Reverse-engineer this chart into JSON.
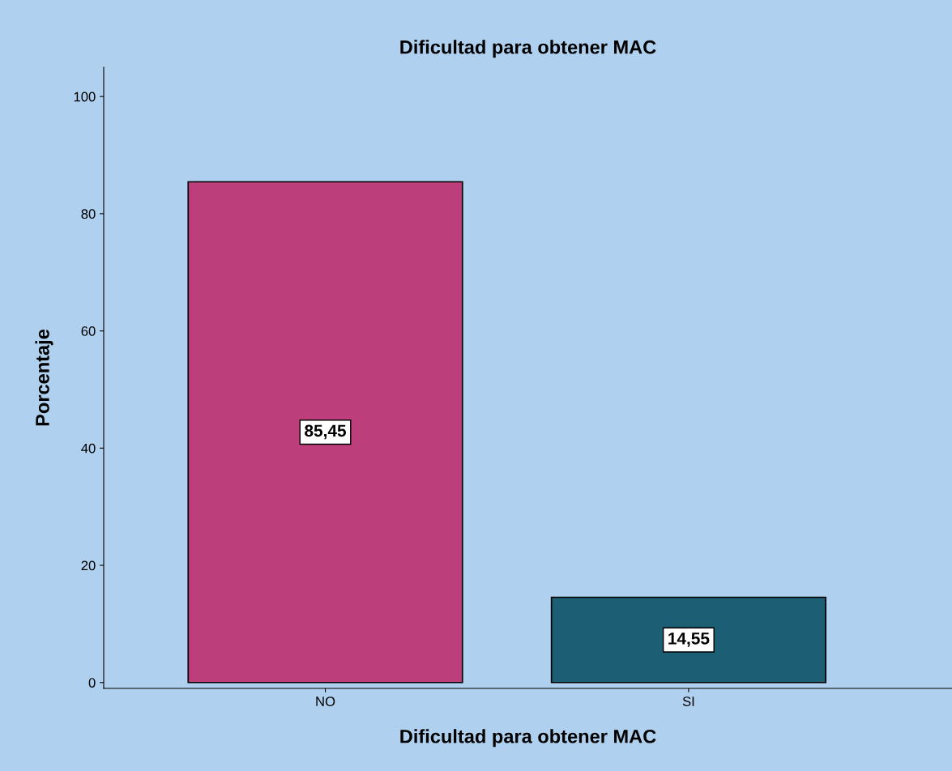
{
  "chart_data": {
    "type": "bar",
    "title": "Dificultad para obtener MAC",
    "xlabel": "Dificultad para obtener MAC",
    "ylabel": "Porcentaje",
    "categories": [
      "NO",
      "SI"
    ],
    "values": [
      85.45,
      14.55
    ],
    "colors": [
      "#bc3f7c",
      "#1c5e74"
    ],
    "value_labels": [
      "85,45",
      "14,55"
    ],
    "ylim": [
      -1,
      105
    ],
    "yticks": [
      0,
      20,
      40,
      60,
      80,
      100
    ],
    "grid": false,
    "legend": false
  }
}
